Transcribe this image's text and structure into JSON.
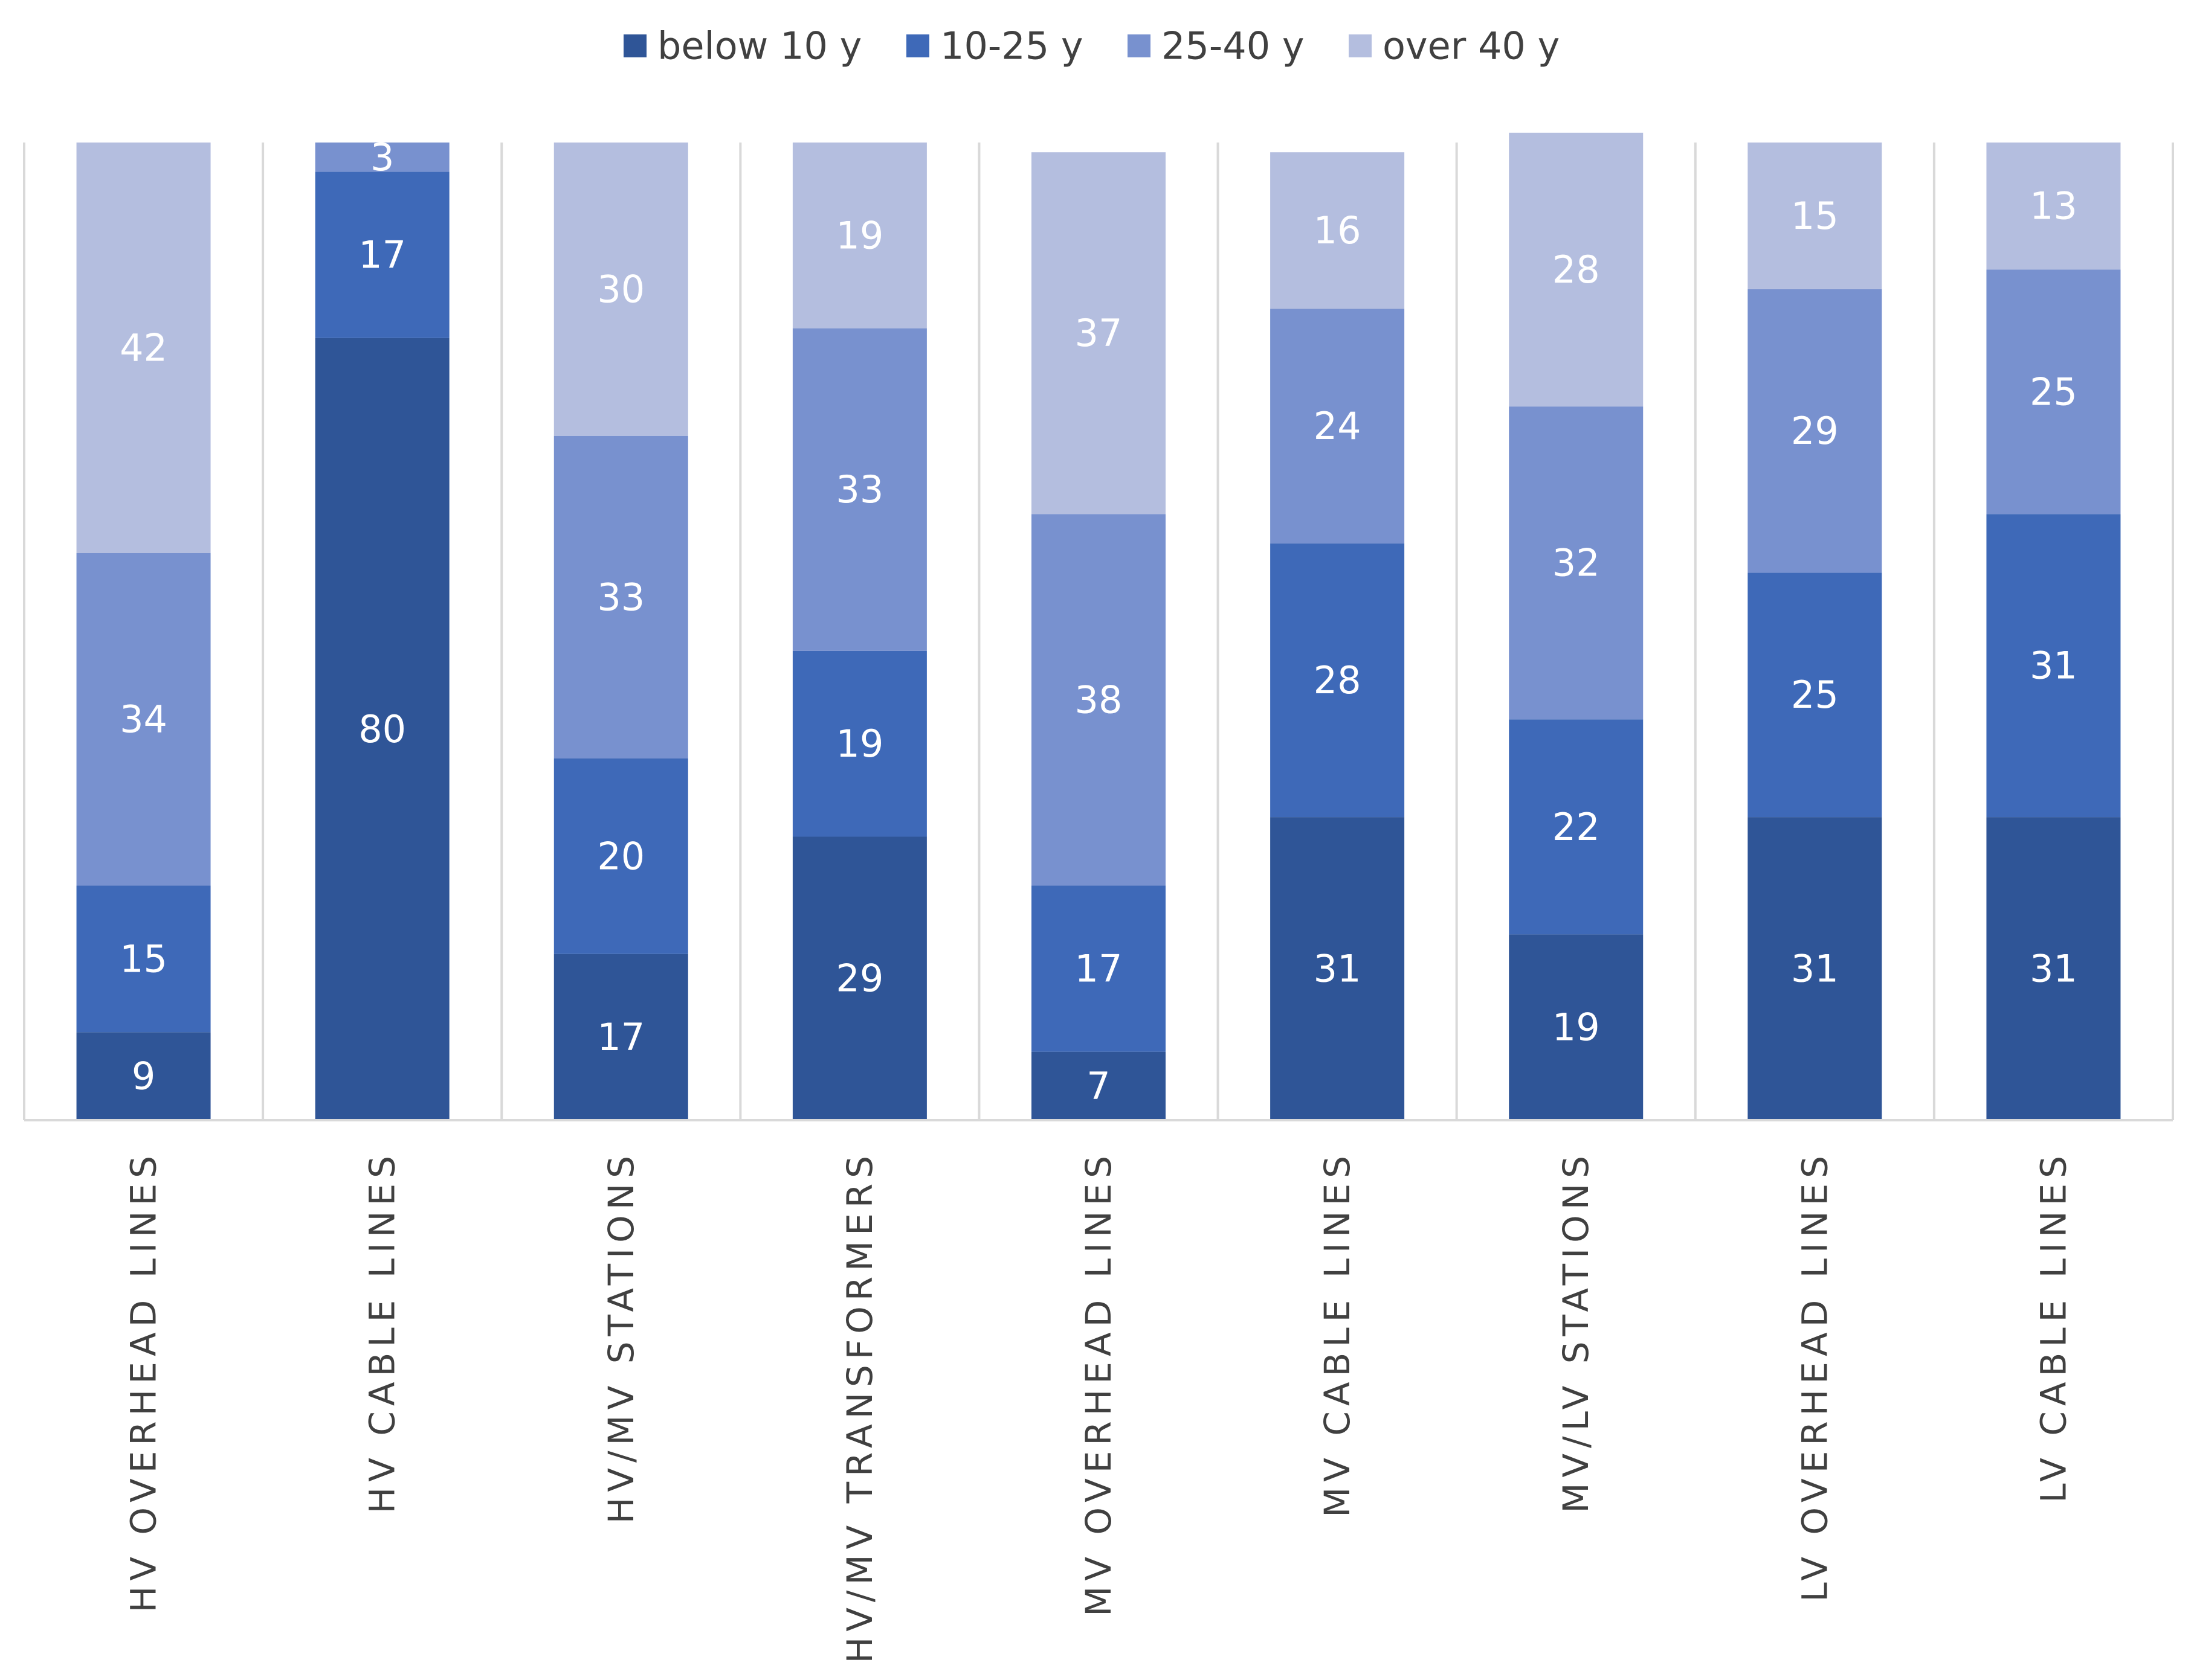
{
  "chart_data": {
    "type": "bar",
    "stacked": true,
    "normalized_percent": true,
    "title": "",
    "xlabel": "",
    "ylabel": "",
    "ylim": [
      0,
      100
    ],
    "legend_position": "top-center",
    "grid": false,
    "categories": [
      "HV OVERHEAD LINES",
      "HV CABLE LINES",
      "HV/MV STATIONS",
      "HV/MV TRANSFORMERS",
      "MV OVERHEAD LINES",
      "MV CABLE LINES",
      "MV/LV STATIONS",
      "LV OVERHEAD LINES",
      "LV CABLE LINES"
    ],
    "series": [
      {
        "name": "below 10 y",
        "color": "#2F5597",
        "values": [
          9,
          80,
          17,
          29,
          7,
          31,
          19,
          31,
          31
        ]
      },
      {
        "name": "10-25 y",
        "color": "#3E69B8",
        "values": [
          15,
          17,
          20,
          19,
          17,
          28,
          22,
          25,
          31
        ]
      },
      {
        "name": "25-40 y",
        "color": "#7891CF",
        "values": [
          34,
          3,
          33,
          33,
          38,
          24,
          32,
          29,
          25
        ]
      },
      {
        "name": "over 40 y",
        "color": "#B4BEDF",
        "values": [
          42,
          null,
          30,
          19,
          37,
          16,
          28,
          15,
          13
        ]
      }
    ]
  }
}
